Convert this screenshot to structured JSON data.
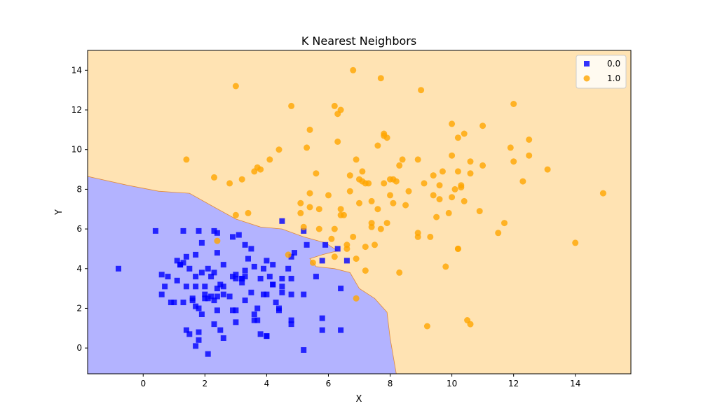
{
  "chart_data": {
    "type": "scatter",
    "title": "K Nearest Neighbors",
    "xlabel": "X",
    "ylabel": "Y",
    "xlim": [
      -1.8,
      15.8
    ],
    "ylim": [
      -1.3,
      15
    ],
    "xticks": [
      0,
      2,
      4,
      6,
      8,
      10,
      12,
      14
    ],
    "yticks": [
      0,
      2,
      4,
      6,
      8,
      10,
      12,
      14
    ],
    "grid": false,
    "legend_position": "top-right",
    "decision_regions": {
      "class_0_color": "#b3b3ff",
      "class_1_color": "#ffe3b3",
      "boundary": [
        [
          -1.8,
          8.65
        ],
        [
          -0.5,
          8.2
        ],
        [
          0.5,
          7.9
        ],
        [
          1.5,
          7.8
        ],
        [
          2.3,
          7.1
        ],
        [
          3.0,
          6.5
        ],
        [
          3.8,
          6.1
        ],
        [
          4.5,
          6.0
        ],
        [
          5.2,
          5.6
        ],
        [
          5.9,
          5.3
        ],
        [
          6.3,
          4.9
        ],
        [
          5.8,
          4.7
        ],
        [
          5.4,
          4.5
        ],
        [
          5.6,
          4.1
        ],
        [
          6.2,
          4.0
        ],
        [
          6.7,
          3.8
        ],
        [
          7.0,
          3.0
        ],
        [
          7.5,
          2.5
        ],
        [
          7.9,
          1.8
        ],
        [
          8.0,
          0.5
        ],
        [
          8.2,
          -1.3
        ]
      ]
    },
    "series": [
      {
        "name": "0.0",
        "marker": "square",
        "color": "#0000ff",
        "points": [
          [
            -0.8,
            4.0
          ],
          [
            0.4,
            5.9
          ],
          [
            0.6,
            3.7
          ],
          [
            0.6,
            2.7
          ],
          [
            0.7,
            3.1
          ],
          [
            0.8,
            3.6
          ],
          [
            0.9,
            2.3
          ],
          [
            1.0,
            2.3
          ],
          [
            1.1,
            3.4
          ],
          [
            1.1,
            4.4
          ],
          [
            1.2,
            4.2
          ],
          [
            1.2,
            4.2
          ],
          [
            1.3,
            4.3
          ],
          [
            1.3,
            2.3
          ],
          [
            1.3,
            5.9
          ],
          [
            1.4,
            3.1
          ],
          [
            1.4,
            4.6
          ],
          [
            1.4,
            0.9
          ],
          [
            1.5,
            0.7
          ],
          [
            1.5,
            4.0
          ],
          [
            1.6,
            2.5
          ],
          [
            1.6,
            2.4
          ],
          [
            1.7,
            4.7
          ],
          [
            1.7,
            3.1
          ],
          [
            1.7,
            3.6
          ],
          [
            1.7,
            2.1
          ],
          [
            1.7,
            0.1
          ],
          [
            1.8,
            5.9
          ],
          [
            1.8,
            0.8
          ],
          [
            1.8,
            0.4
          ],
          [
            1.8,
            2.0
          ],
          [
            1.9,
            3.8
          ],
          [
            1.9,
            5.3
          ],
          [
            1.9,
            1.7
          ],
          [
            2.0,
            2.7
          ],
          [
            2.0,
            2.5
          ],
          [
            2.0,
            3.1
          ],
          [
            2.1,
            4.0
          ],
          [
            2.1,
            2.5
          ],
          [
            2.1,
            -0.3
          ],
          [
            2.2,
            2.6
          ],
          [
            2.2,
            3.6
          ],
          [
            2.3,
            2.4
          ],
          [
            2.3,
            1.2
          ],
          [
            2.3,
            5.9
          ],
          [
            2.3,
            3.8
          ],
          [
            2.4,
            3.0
          ],
          [
            2.4,
            5.8
          ],
          [
            2.4,
            1.9
          ],
          [
            2.4,
            4.8
          ],
          [
            2.4,
            2.6
          ],
          [
            2.5,
            3.2
          ],
          [
            2.5,
            0.9
          ],
          [
            2.6,
            4.2
          ],
          [
            2.6,
            3.1
          ],
          [
            2.6,
            0.5
          ],
          [
            2.6,
            2.7
          ],
          [
            2.8,
            2.6
          ],
          [
            2.9,
            1.9
          ],
          [
            2.9,
            3.6
          ],
          [
            2.9,
            5.6
          ],
          [
            3.0,
            3.5
          ],
          [
            3.0,
            1.3
          ],
          [
            3.0,
            3.7
          ],
          [
            3.0,
            1.9
          ],
          [
            3.1,
            5.7
          ],
          [
            3.2,
            3.5
          ],
          [
            3.2,
            3.3
          ],
          [
            3.2,
            3.5
          ],
          [
            3.3,
            5.2
          ],
          [
            3.3,
            3.9
          ],
          [
            3.3,
            3.6
          ],
          [
            3.3,
            2.4
          ],
          [
            3.4,
            4.5
          ],
          [
            3.5,
            2.8
          ],
          [
            3.5,
            5.0
          ],
          [
            3.6,
            1.7
          ],
          [
            3.6,
            4.1
          ],
          [
            3.6,
            1.4
          ],
          [
            3.7,
            2.0
          ],
          [
            3.7,
            1.4
          ],
          [
            3.8,
            3.5
          ],
          [
            3.8,
            0.7
          ],
          [
            3.9,
            2.7
          ],
          [
            3.9,
            4.0
          ],
          [
            4.0,
            2.7
          ],
          [
            4.0,
            4.4
          ],
          [
            4.0,
            0.6
          ],
          [
            4.0,
            0.6
          ],
          [
            4.1,
            3.6
          ],
          [
            4.2,
            3.2
          ],
          [
            4.2,
            3.2
          ],
          [
            4.2,
            4.2
          ],
          [
            4.3,
            2.3
          ],
          [
            4.4,
            2.0
          ],
          [
            4.4,
            1.9
          ],
          [
            4.5,
            3.5
          ],
          [
            4.5,
            3.1
          ],
          [
            4.5,
            2.8
          ],
          [
            4.5,
            6.4
          ],
          [
            4.7,
            4.0
          ],
          [
            4.8,
            1.4
          ],
          [
            4.8,
            1.2
          ],
          [
            4.8,
            4.6
          ],
          [
            4.8,
            2.7
          ],
          [
            4.8,
            3.5
          ],
          [
            4.9,
            4.8
          ],
          [
            5.2,
            2.7
          ],
          [
            5.2,
            -0.1
          ],
          [
            5.2,
            5.9
          ],
          [
            5.3,
            5.2
          ],
          [
            5.6,
            3.6
          ],
          [
            5.8,
            1.5
          ],
          [
            5.8,
            0.9
          ],
          [
            5.8,
            4.4
          ],
          [
            5.9,
            5.2
          ],
          [
            6.3,
            5.0
          ],
          [
            6.4,
            3.0
          ],
          [
            6.4,
            0.9
          ],
          [
            6.6,
            4.4
          ]
        ]
      },
      {
        "name": "1.0",
        "marker": "circle",
        "color": "#ffa500",
        "points": [
          [
            1.4,
            9.5
          ],
          [
            2.3,
            8.6
          ],
          [
            2.4,
            5.4
          ],
          [
            2.8,
            8.3
          ],
          [
            3.0,
            13.2
          ],
          [
            3.0,
            6.7
          ],
          [
            3.2,
            8.5
          ],
          [
            3.4,
            6.8
          ],
          [
            3.6,
            8.9
          ],
          [
            3.7,
            9.1
          ],
          [
            3.8,
            9.0
          ],
          [
            4.1,
            9.5
          ],
          [
            4.4,
            10.0
          ],
          [
            4.7,
            4.7
          ],
          [
            4.8,
            12.2
          ],
          [
            5.1,
            7.3
          ],
          [
            5.1,
            6.8
          ],
          [
            5.2,
            6.1
          ],
          [
            5.3,
            10.1
          ],
          [
            5.4,
            11.0
          ],
          [
            5.4,
            7.1
          ],
          [
            5.4,
            7.8
          ],
          [
            5.5,
            4.3
          ],
          [
            5.6,
            8.8
          ],
          [
            5.7,
            6.0
          ],
          [
            5.7,
            7.0
          ],
          [
            6.0,
            7.7
          ],
          [
            6.1,
            5.5
          ],
          [
            6.2,
            6.0
          ],
          [
            6.2,
            4.6
          ],
          [
            6.2,
            12.2
          ],
          [
            6.3,
            10.4
          ],
          [
            6.3,
            11.8
          ],
          [
            6.4,
            12.0
          ],
          [
            6.4,
            6.7
          ],
          [
            6.4,
            7.0
          ],
          [
            6.5,
            6.7
          ],
          [
            6.6,
            5.0
          ],
          [
            6.6,
            5.2
          ],
          [
            6.7,
            8.7
          ],
          [
            6.7,
            7.9
          ],
          [
            6.8,
            14.0
          ],
          [
            6.8,
            5.6
          ],
          [
            6.9,
            4.5
          ],
          [
            6.9,
            2.5
          ],
          [
            6.9,
            9.5
          ],
          [
            7.0,
            8.5
          ],
          [
            7.0,
            7.3
          ],
          [
            7.1,
            8.9
          ],
          [
            7.1,
            8.4
          ],
          [
            7.2,
            8.3
          ],
          [
            7.2,
            5.1
          ],
          [
            7.2,
            3.9
          ],
          [
            7.3,
            8.3
          ],
          [
            7.4,
            7.4
          ],
          [
            7.4,
            6.1
          ],
          [
            7.4,
            6.3
          ],
          [
            7.5,
            5.2
          ],
          [
            7.6,
            10.2
          ],
          [
            7.6,
            7.0
          ],
          [
            7.7,
            13.6
          ],
          [
            7.7,
            6.0
          ],
          [
            7.8,
            8.3
          ],
          [
            7.8,
            10.8
          ],
          [
            7.8,
            10.7
          ],
          [
            7.9,
            10.6
          ],
          [
            7.9,
            6.3
          ],
          [
            8.0,
            8.5
          ],
          [
            8.0,
            7.7
          ],
          [
            8.1,
            8.5
          ],
          [
            8.1,
            7.3
          ],
          [
            8.2,
            8.4
          ],
          [
            8.3,
            3.8
          ],
          [
            8.3,
            9.2
          ],
          [
            8.4,
            9.5
          ],
          [
            8.5,
            7.2
          ],
          [
            8.6,
            7.9
          ],
          [
            8.9,
            5.8
          ],
          [
            8.9,
            5.6
          ],
          [
            8.9,
            9.5
          ],
          [
            9.0,
            13.0
          ],
          [
            9.1,
            8.3
          ],
          [
            9.2,
            1.1
          ],
          [
            9.3,
            5.6
          ],
          [
            9.4,
            8.7
          ],
          [
            9.4,
            7.7
          ],
          [
            9.5,
            6.6
          ],
          [
            9.6,
            8.2
          ],
          [
            9.6,
            7.5
          ],
          [
            9.7,
            8.9
          ],
          [
            9.8,
            4.1
          ],
          [
            9.9,
            6.8
          ],
          [
            10.0,
            11.3
          ],
          [
            10.0,
            9.7
          ],
          [
            10.0,
            7.6
          ],
          [
            10.1,
            8.0
          ],
          [
            10.2,
            5.0
          ],
          [
            10.2,
            5.0
          ],
          [
            10.2,
            8.9
          ],
          [
            10.2,
            10.6
          ],
          [
            10.3,
            8.2
          ],
          [
            10.3,
            8.1
          ],
          [
            10.4,
            7.4
          ],
          [
            10.4,
            10.8
          ],
          [
            10.5,
            1.4
          ],
          [
            10.6,
            8.8
          ],
          [
            10.6,
            9.4
          ],
          [
            10.6,
            1.2
          ],
          [
            10.9,
            6.9
          ],
          [
            11.0,
            11.2
          ],
          [
            11.0,
            9.2
          ],
          [
            11.5,
            5.8
          ],
          [
            11.7,
            6.3
          ],
          [
            11.9,
            10.1
          ],
          [
            12.0,
            12.3
          ],
          [
            12.0,
            9.4
          ],
          [
            12.3,
            8.4
          ],
          [
            12.5,
            9.7
          ],
          [
            12.5,
            10.5
          ],
          [
            13.1,
            9.0
          ],
          [
            14.0,
            5.3
          ],
          [
            14.9,
            7.8
          ]
        ]
      }
    ]
  }
}
